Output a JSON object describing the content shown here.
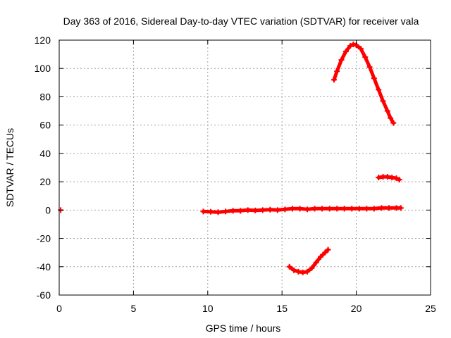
{
  "chart_data": {
    "type": "scatter",
    "title": "Day 363 of 2016, Sidereal Day-to-day VTEC variation (SDTVAR) for receiver vala",
    "xlabel": "GPS time / hours",
    "ylabel": "SDTVAR / TECUs",
    "xlim": [
      0,
      25
    ],
    "ylim": [
      -60,
      120
    ],
    "xticks": [
      0,
      5,
      10,
      15,
      20,
      25
    ],
    "yticks": [
      -60,
      -40,
      -20,
      0,
      20,
      40,
      60,
      80,
      100,
      120
    ],
    "grid": true,
    "legend": "none",
    "marker": "plus",
    "series": [
      {
        "color": "#ff0000",
        "segments": [
          [
            [
              0.1,
              0
            ]
          ],
          [
            [
              9.7,
              -1
            ],
            [
              10.2,
              -1.2
            ],
            [
              10.7,
              -1.5
            ],
            [
              11.2,
              -1
            ],
            [
              11.7,
              -0.5
            ],
            [
              12.2,
              -0.5
            ],
            [
              12.7,
              0
            ],
            [
              13.2,
              -0.3
            ],
            [
              13.7,
              0
            ],
            [
              14.2,
              0.3
            ],
            [
              14.7,
              0
            ],
            [
              15.2,
              0.5
            ],
            [
              15.7,
              1
            ],
            [
              16.2,
              1
            ],
            [
              16.7,
              0.5
            ],
            [
              17.2,
              1
            ],
            [
              17.7,
              1
            ],
            [
              18.2,
              1
            ],
            [
              18.7,
              1
            ],
            [
              19.2,
              1
            ],
            [
              19.7,
              1
            ],
            [
              20.2,
              1
            ],
            [
              20.7,
              1
            ],
            [
              21.2,
              1
            ],
            [
              21.7,
              1.5
            ],
            [
              22.2,
              1.5
            ],
            [
              22.7,
              1.5
            ],
            [
              23.0,
              1.5
            ]
          ],
          [
            [
              15.5,
              -40
            ],
            [
              15.8,
              -42.5
            ],
            [
              16.1,
              -43.5
            ],
            [
              16.4,
              -44
            ],
            [
              16.7,
              -43.5
            ],
            [
              17.0,
              -41
            ],
            [
              17.3,
              -37
            ],
            [
              17.6,
              -33
            ],
            [
              17.9,
              -30
            ],
            [
              18.1,
              -28
            ]
          ],
          [
            [
              18.5,
              92
            ],
            [
              18.7,
              98
            ],
            [
              19.0,
              106
            ],
            [
              19.3,
              112
            ],
            [
              19.6,
              116
            ],
            [
              19.8,
              117
            ],
            [
              20.0,
              116.5
            ],
            [
              20.3,
              114
            ],
            [
              20.6,
              108
            ],
            [
              20.9,
              101
            ],
            [
              21.2,
              93
            ],
            [
              21.5,
              85
            ],
            [
              21.8,
              77
            ],
            [
              22.1,
              70
            ],
            [
              22.3,
              65
            ],
            [
              22.5,
              61.5
            ]
          ],
          [
            [
              21.5,
              23
            ],
            [
              21.8,
              23.5
            ],
            [
              22.1,
              23.5
            ],
            [
              22.4,
              23
            ],
            [
              22.7,
              22.5
            ],
            [
              22.9,
              21.5
            ]
          ]
        ]
      }
    ]
  }
}
